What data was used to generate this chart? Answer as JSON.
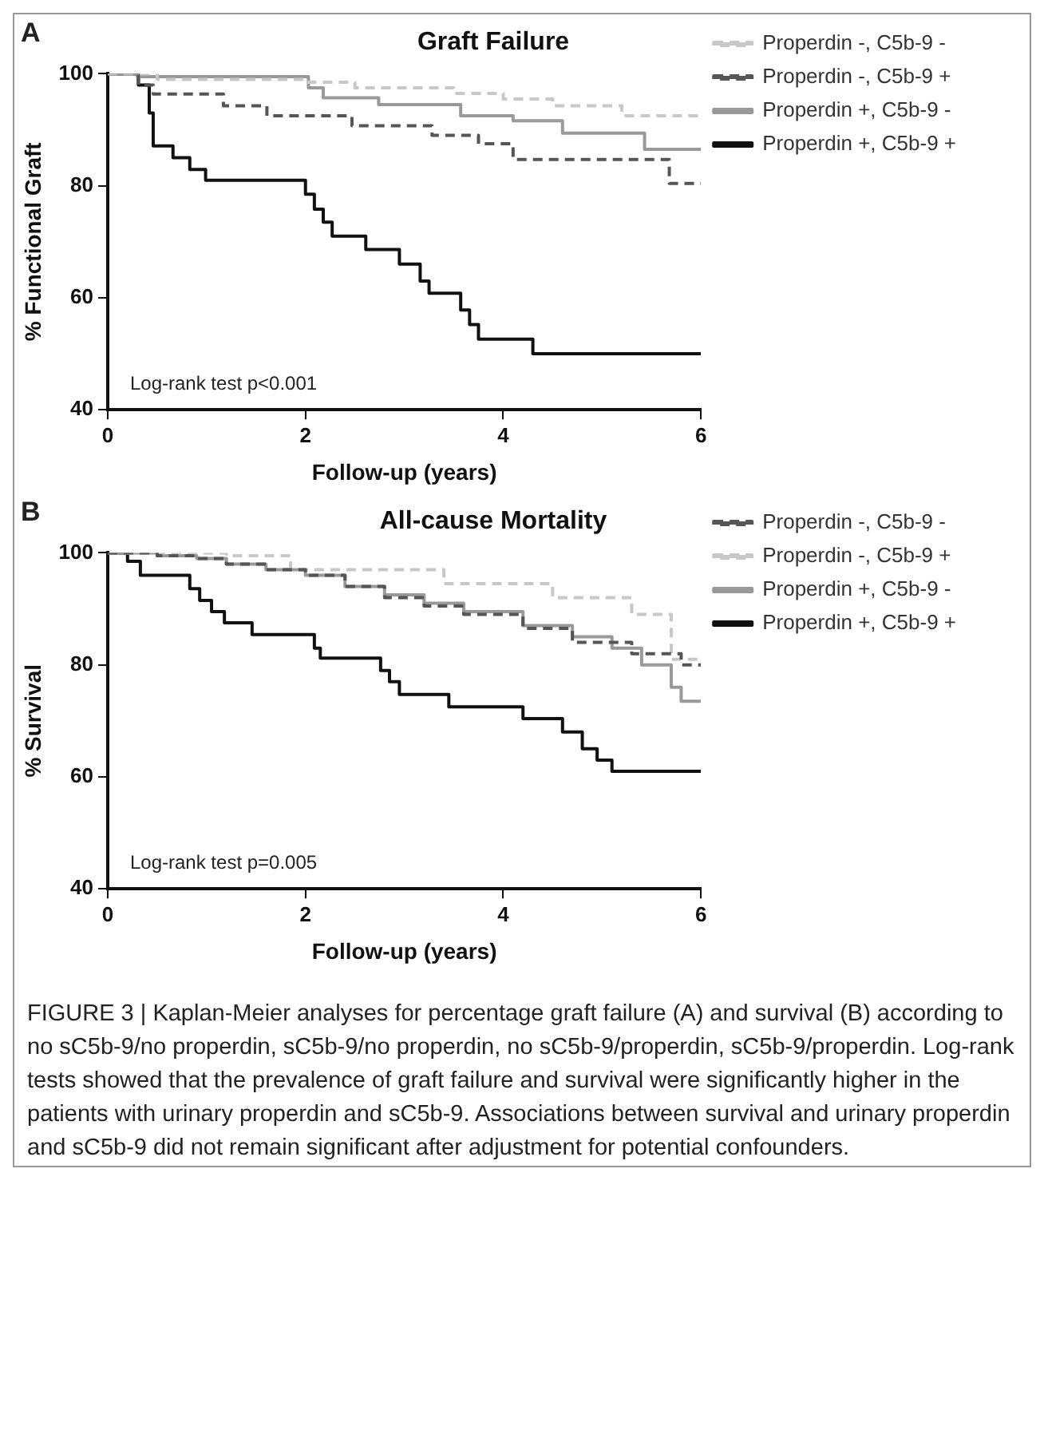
{
  "chart_data": [
    {
      "type": "step",
      "title": "Graft Failure",
      "xlabel": "Follow-up (years)",
      "ylabel": "% Functional Graft",
      "annotations": [
        "A",
        "Log-rank test p<0.001"
      ],
      "xlim": [
        0,
        6
      ],
      "xticks": [
        0,
        2,
        4,
        6
      ],
      "ylim": [
        40,
        100
      ],
      "yticks": [
        40,
        60,
        80,
        100
      ],
      "grid": false,
      "legend": "right",
      "marker": "none",
      "series": [
        {
          "name": "Properdin -, C5b-9 -",
          "color": "#c8c8c8",
          "line_style": "dashed",
          "x": [
            0,
            0.3,
            0.5,
            2.0,
            2.5,
            3.5,
            4.0,
            4.5,
            5.2,
            6
          ],
          "values": [
            100,
            100,
            99,
            98.5,
            97.5,
            96.5,
            95.5,
            94.3,
            92.5,
            92
          ]
        },
        {
          "name": "Properdin -, C5b-9 +",
          "color": "#555555",
          "line_style": "dashed",
          "x": [
            0,
            0.31,
            0.46,
            1.17,
            1.61,
            2.47,
            3.28,
            3.75,
            4.1,
            5.68,
            6
          ],
          "values": [
            100,
            98,
            96.4,
            94.3,
            92.5,
            90.7,
            89,
            87.5,
            84.7,
            80.4,
            80.4
          ]
        },
        {
          "name": "Properdin +, C5b-9 -",
          "color": "#999999",
          "line_style": "solid",
          "x": [
            0,
            0.3,
            1.85,
            2.03,
            2.18,
            2.74,
            3.57,
            4.1,
            4.6,
            5.43,
            6
          ],
          "values": [
            100,
            99.5,
            99.5,
            97.5,
            95.7,
            94.5,
            92.5,
            91.6,
            89.4,
            86.5,
            86.5
          ]
        },
        {
          "name": "Properdin +, C5b-9 +",
          "color": "#111111",
          "line_style": "solid",
          "x": [
            0,
            0.31,
            0.42,
            0.46,
            0.66,
            0.83,
            0.99,
            2.0,
            2.09,
            2.18,
            2.27,
            2.61,
            2.95,
            3.16,
            3.25,
            3.57,
            3.66,
            3.75,
            4.3,
            6
          ],
          "values": [
            100,
            98,
            93,
            87.1,
            85,
            82.9,
            81,
            78.5,
            75.8,
            73.5,
            71,
            68.6,
            66,
            63,
            60.8,
            57.8,
            55.2,
            52.6,
            50,
            50
          ]
        }
      ]
    },
    {
      "type": "step",
      "title": "All-cause Mortality",
      "xlabel": "Follow-up (years)",
      "ylabel": "% Survival",
      "annotations": [
        "B",
        "Log-rank test p=0.005",
        "FIGURE 3 | Kaplan-Meier analyses for percentage graft failure (A) and survival (B) according to no sC5b-9/no properdin, sC5b-9/no properdin, no sC5b-9/properdin, sC5b-9/properdin. Log-rank tests showed that the prevalence of graft failure and survival were significantly higher in the patients with urinary properdin and sC5b-9. Associations between survival and urinary properdin and sC5b-9 did not remain significant after adjustment for potential confounders."
      ],
      "xlim": [
        0,
        6
      ],
      "xticks": [
        0,
        2,
        4,
        6
      ],
      "ylim": [
        40,
        100
      ],
      "yticks": [
        40,
        60,
        80,
        100
      ],
      "grid": false,
      "legend": "right",
      "marker": "none",
      "series": [
        {
          "name": "Properdin -, C5b-9 -",
          "color": "#555555",
          "line_style": "dashed",
          "x": [
            0,
            0.5,
            0.9,
            1.2,
            1.6,
            2.0,
            2.4,
            2.8,
            3.2,
            3.6,
            4.2,
            4.7,
            5.3,
            5.8,
            6
          ],
          "values": [
            100,
            99.5,
            99,
            98,
            97,
            96,
            94,
            92,
            90.5,
            89,
            86.5,
            84,
            82,
            80,
            80
          ]
        },
        {
          "name": "Properdin -, C5b-9 +",
          "color": "#c8c8c8",
          "line_style": "dashed",
          "x": [
            0,
            1.2,
            1.85,
            3.4,
            4.5,
            5.3,
            5.7,
            6
          ],
          "values": [
            100,
            99.5,
            97,
            94.5,
            92,
            89,
            81,
            81
          ]
        },
        {
          "name": "Properdin +, C5b-9 -",
          "color": "#999999",
          "line_style": "solid",
          "x": [
            0,
            0.5,
            0.9,
            1.2,
            1.6,
            2.0,
            2.4,
            2.8,
            3.2,
            3.6,
            4.2,
            4.7,
            5.1,
            5.4,
            5.7,
            5.8,
            6
          ],
          "values": [
            100,
            99.5,
            99,
            98,
            97,
            96,
            94,
            92.5,
            91,
            89.5,
            87,
            85,
            83,
            80,
            76,
            73.5,
            73.5
          ]
        },
        {
          "name": "Properdin +, C5b-9 +",
          "color": "#111111",
          "line_style": "solid",
          "x": [
            0,
            0.2,
            0.33,
            0.83,
            0.93,
            1.05,
            1.18,
            1.46,
            2.09,
            2.15,
            2.76,
            2.85,
            2.95,
            3.45,
            4.2,
            4.6,
            4.8,
            4.95,
            5.1,
            6
          ],
          "values": [
            100,
            98.5,
            96,
            93.6,
            91.5,
            89.5,
            87.5,
            85.4,
            83,
            81.2,
            79,
            77,
            74.7,
            72.5,
            70.4,
            68,
            65,
            63,
            61,
            61
          ]
        }
      ]
    }
  ]
}
